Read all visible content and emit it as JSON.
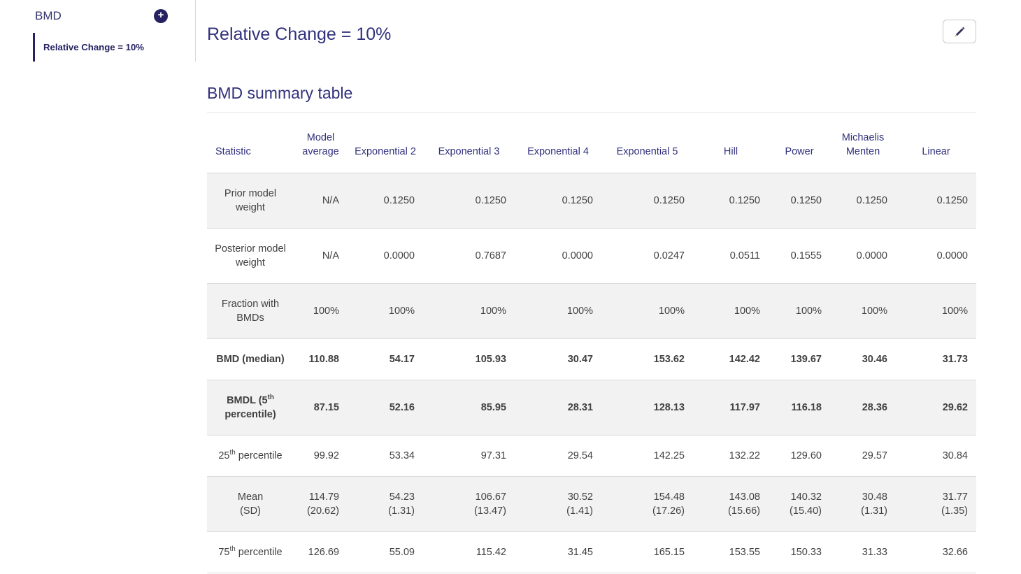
{
  "sidebar": {
    "title": "BMD",
    "add_button_label": "+",
    "items": [
      {
        "label": "Relative Change = 10%",
        "selected": true
      }
    ]
  },
  "main": {
    "title": "Relative Change = 10%",
    "edit_icon": "pencil-icon"
  },
  "summary": {
    "heading": "BMD summary table"
  },
  "table": {
    "columns": [
      "Statistic",
      "Model\naverage",
      "Exponential 2",
      "Exponential 3",
      "Exponential 4",
      "Exponential 5",
      "Hill",
      "Power",
      "Michaelis\nMenten",
      "Linear"
    ],
    "rows": [
      {
        "name": "prior-model-weight",
        "bold": false,
        "label": [
          {
            "t": "Prior model"
          },
          {
            "br": true
          },
          {
            "t": "weight"
          }
        ],
        "values": [
          "N/A",
          "0.1250",
          "0.1250",
          "0.1250",
          "0.1250",
          "0.1250",
          "0.1250",
          "0.1250",
          "0.1250"
        ]
      },
      {
        "name": "posterior-model-weight",
        "bold": false,
        "label": [
          {
            "t": "Posterior model"
          },
          {
            "br": true
          },
          {
            "t": "weight"
          }
        ],
        "values": [
          "N/A",
          "0.0000",
          "0.7687",
          "0.0000",
          "0.0247",
          "0.0511",
          "0.1555",
          "0.0000",
          "0.0000"
        ]
      },
      {
        "name": "fraction-with-bmds",
        "bold": false,
        "label": [
          {
            "t": "Fraction with"
          },
          {
            "br": true
          },
          {
            "t": "BMDs"
          }
        ],
        "values": [
          "100%",
          "100%",
          "100%",
          "100%",
          "100%",
          "100%",
          "100%",
          "100%",
          "100%"
        ]
      },
      {
        "name": "bmd-median",
        "bold": true,
        "label": [
          {
            "t": "BMD (median)"
          }
        ],
        "values": [
          "110.88",
          "54.17",
          "105.93",
          "30.47",
          "153.62",
          "142.42",
          "139.67",
          "30.46",
          "31.73"
        ]
      },
      {
        "name": "bmdl-5th-percentile",
        "bold": true,
        "label": [
          {
            "t": "BMDL (5"
          },
          {
            "sup": "th"
          },
          {
            "br": true
          },
          {
            "t": "percentile)"
          }
        ],
        "values": [
          "87.15",
          "52.16",
          "85.95",
          "28.31",
          "128.13",
          "117.97",
          "116.18",
          "28.36",
          "29.62"
        ]
      },
      {
        "name": "percentile-25",
        "bold": false,
        "label": [
          {
            "t": "25"
          },
          {
            "sup": "th"
          },
          {
            "t": " percentile"
          }
        ],
        "values": [
          "99.92",
          "53.34",
          "97.31",
          "29.54",
          "142.25",
          "132.22",
          "129.60",
          "29.57",
          "30.84"
        ]
      },
      {
        "name": "mean-sd",
        "bold": false,
        "label": [
          {
            "t": "Mean"
          },
          {
            "br": true
          },
          {
            "t": "(SD)"
          }
        ],
        "values": [
          "114.79\n(20.62)",
          "54.23\n(1.31)",
          "106.67\n(13.47)",
          "30.52\n(1.41)",
          "154.48\n(17.26)",
          "143.08\n(15.66)",
          "140.32\n(15.40)",
          "30.48\n(1.31)",
          "31.77\n(1.35)"
        ]
      },
      {
        "name": "percentile-75",
        "bold": false,
        "label": [
          {
            "t": "75"
          },
          {
            "sup": "th"
          },
          {
            "t": " percentile"
          }
        ],
        "values": [
          "126.69",
          "55.09",
          "115.42",
          "31.45",
          "165.15",
          "153.55",
          "150.33",
          "31.33",
          "32.66"
        ]
      }
    ]
  },
  "colors": {
    "accent_navy": "#31317d",
    "sidebar_accent": "#262262",
    "stripe": "#f2f2f2",
    "row_border": "#dcdcdc",
    "body_text": "#414141"
  }
}
